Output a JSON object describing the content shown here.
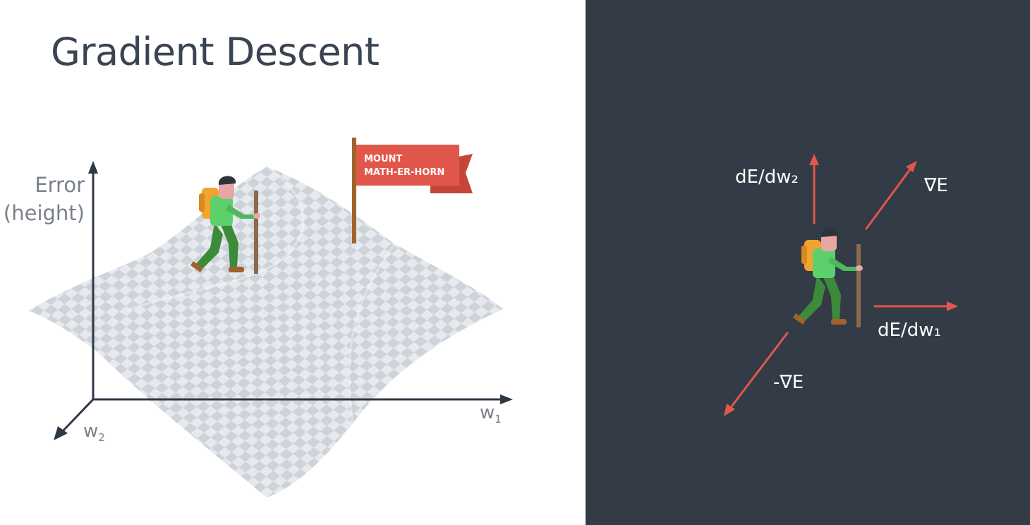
{
  "title": "Gradient Descent",
  "left_diagram": {
    "y_axis_label": [
      "Error",
      "(height)"
    ],
    "x_axis_label": {
      "base": "w",
      "sub": "1"
    },
    "z_axis_label": {
      "base": "w",
      "sub": "2"
    },
    "flag_text": [
      "MOUNT",
      "MATH-ER-HORN"
    ],
    "surface_colors": {
      "light": "#e6e9ee",
      "dark": "#ced3da"
    },
    "flag_color": "#e2574c"
  },
  "right_diagram": {
    "background": "#333b46",
    "arrow_color": "#e2574c",
    "labels": {
      "partial_w2": "dE/dw₂",
      "gradient": "∇E",
      "partial_w1": "dE/dw₁",
      "negative_gradient": "-∇E"
    }
  },
  "hiker_colors": {
    "shirt": "#5dd06c",
    "pants": "#3c8a3a",
    "backpack": "#f3a331",
    "stick": "#8a6a4a"
  }
}
